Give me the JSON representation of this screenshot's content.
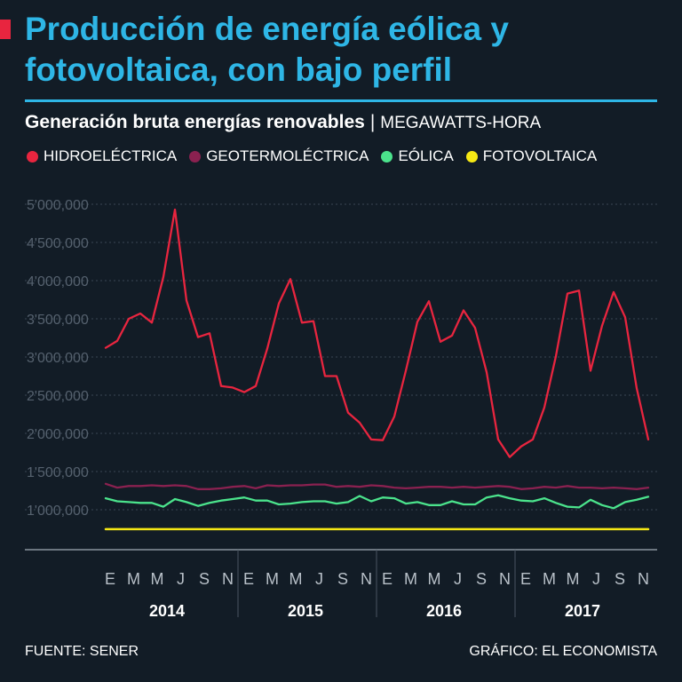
{
  "header": {
    "title": "Producción de energía eólica y fotovoltaica, con bajo perfil",
    "subtitle": "Generación bruta energías renovables",
    "separator": "|",
    "unit": "MEGAWATTS-HORA"
  },
  "footer": {
    "source": "FUENTE: SENER",
    "credit": "GRÁFICO: EL ECONOMISTA"
  },
  "colors": {
    "title": "#2eb6e6",
    "accent": "#e8253f",
    "background": "#121c26"
  },
  "chart_data": {
    "type": "line",
    "title": "Generación bruta energías renovables",
    "ylabel": "MEGAWATTS-HORA",
    "ylim": [
      500000,
      5000000
    ],
    "yticks": [
      1000000,
      1500000,
      2000000,
      2500000,
      3000000,
      3500000,
      4000000,
      4500000,
      5000000
    ],
    "ytick_labels": [
      "1'000,000",
      "1'500,000",
      "2'000,000",
      "2'500,000",
      "3'000,000",
      "3'500,000",
      "4'000,000",
      "4'500,000",
      "5'000,000"
    ],
    "month_labels": [
      "E",
      "M",
      "M",
      "J",
      "S",
      "N"
    ],
    "years": [
      "2014",
      "2015",
      "2016",
      "2017"
    ],
    "grid": true,
    "series": [
      {
        "name": "HIDROELÉCTRICA",
        "color": "#e8253f",
        "values": [
          3120000,
          3210000,
          3500000,
          3570000,
          3450000,
          4050000,
          4930000,
          3740000,
          3260000,
          3310000,
          2620000,
          2600000,
          2540000,
          2620000,
          3110000,
          3700000,
          4020000,
          3450000,
          3470000,
          2750000,
          2750000,
          2270000,
          2140000,
          1920000,
          1910000,
          2220000,
          2820000,
          3460000,
          3730000,
          3200000,
          3280000,
          3610000,
          3380000,
          2800000,
          1920000,
          1690000,
          1830000,
          1920000,
          2340000,
          3010000,
          3830000,
          3870000,
          2820000,
          3410000,
          3850000,
          3520000,
          2590000,
          1920000
        ]
      },
      {
        "name": "GEOTERMOLÉCTRICA",
        "color": "#8a2150",
        "values": [
          1340000,
          1290000,
          1310000,
          1310000,
          1320000,
          1310000,
          1320000,
          1310000,
          1270000,
          1270000,
          1280000,
          1300000,
          1310000,
          1280000,
          1320000,
          1310000,
          1320000,
          1320000,
          1330000,
          1330000,
          1300000,
          1310000,
          1300000,
          1320000,
          1310000,
          1290000,
          1280000,
          1290000,
          1300000,
          1300000,
          1290000,
          1300000,
          1290000,
          1300000,
          1310000,
          1300000,
          1270000,
          1280000,
          1300000,
          1290000,
          1310000,
          1290000,
          1290000,
          1280000,
          1290000,
          1280000,
          1270000,
          1290000
        ]
      },
      {
        "name": "EÓLICA",
        "color": "#4be38c",
        "values": [
          1150000,
          1110000,
          1100000,
          1090000,
          1090000,
          1040000,
          1140000,
          1100000,
          1050000,
          1090000,
          1120000,
          1140000,
          1160000,
          1120000,
          1120000,
          1070000,
          1080000,
          1100000,
          1110000,
          1110000,
          1080000,
          1100000,
          1180000,
          1110000,
          1160000,
          1150000,
          1080000,
          1100000,
          1060000,
          1060000,
          1110000,
          1070000,
          1070000,
          1160000,
          1190000,
          1150000,
          1120000,
          1110000,
          1150000,
          1090000,
          1040000,
          1030000,
          1130000,
          1060000,
          1020000,
          1100000,
          1130000,
          1170000
        ]
      },
      {
        "name": "FOTOVOLTAICA",
        "color": "#f6e814",
        "values": [
          745000,
          745000,
          745000,
          745000,
          745000,
          745000,
          745000,
          745000,
          745000,
          745000,
          745000,
          745000,
          745000,
          745000,
          745000,
          745000,
          745000,
          745000,
          745000,
          745000,
          745000,
          745000,
          745000,
          745000,
          745000,
          745000,
          745000,
          745000,
          745000,
          745000,
          745000,
          745000,
          745000,
          745000,
          745000,
          745000,
          745000,
          745000,
          745000,
          745000,
          745000,
          745000,
          745000,
          745000,
          745000,
          745000,
          745000,
          745000
        ]
      }
    ]
  }
}
